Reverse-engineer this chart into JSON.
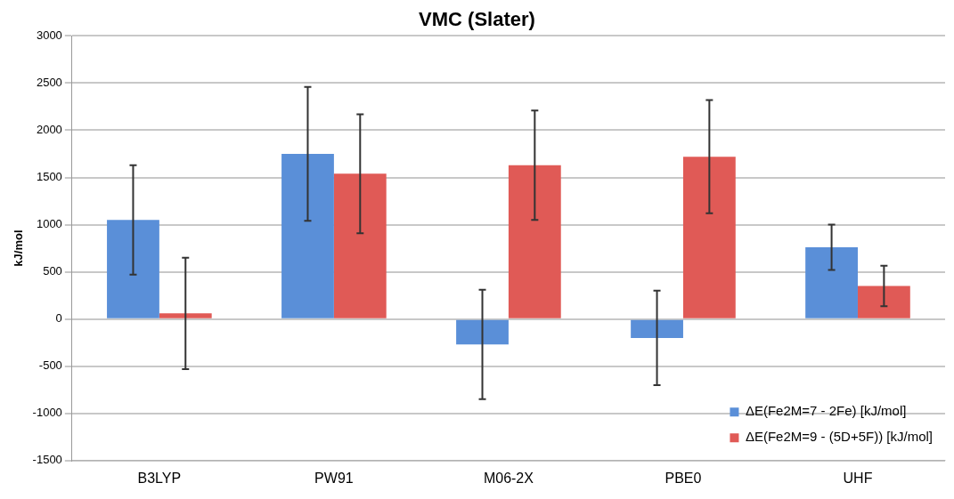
{
  "chart_data": {
    "type": "bar",
    "title": "VMC (Slater)",
    "ylabel": "kJ/mol",
    "categories": [
      "B3LYP",
      "PW91",
      "M06-2X",
      "PBE0",
      "UHF"
    ],
    "series": [
      {
        "name": "ΔE(Fe2M=7 - 2Fe) [kJ/mol]",
        "color": "#5a8fd8",
        "values": [
          1050,
          1750,
          -270,
          -200,
          760
        ],
        "errors": [
          580,
          710,
          580,
          500,
          240
        ]
      },
      {
        "name": "ΔE(Fe2M=9 - (5D+5F)) [kJ/mol]",
        "color": "#e05a56",
        "values": [
          60,
          1540,
          1630,
          1720,
          350
        ],
        "errors": [
          590,
          630,
          580,
          600,
          215
        ]
      }
    ],
    "ylim": [
      -1500,
      3000
    ],
    "yticks": [
      -1500,
      -1000,
      -500,
      0,
      500,
      1000,
      1500,
      2000,
      2500,
      3000
    ],
    "grid": "y",
    "legend": "bottom right"
  }
}
